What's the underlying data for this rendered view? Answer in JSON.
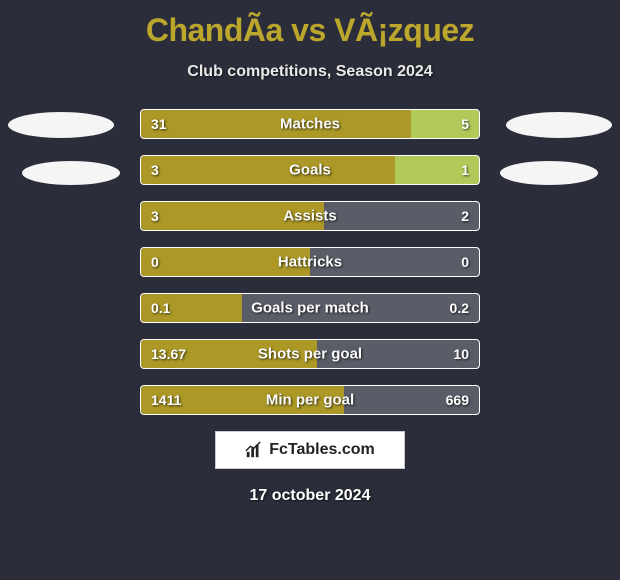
{
  "background_color": "#2b2e3a",
  "title": {
    "text": "ChandÃ­a vs VÃ¡zquez",
    "color": "#bca72c",
    "fontsize": 32
  },
  "subtitle": "Club competitions, Season 2024",
  "ellipses": {
    "color": "#f5f5f5"
  },
  "chart": {
    "type": "comparison-bars",
    "bar_left_color": "#ab9826",
    "bar_right_color": "#b2c95a",
    "track_color": "#5a5d68",
    "border_color": "#ffffff",
    "text_color": "#ffffff",
    "label_fontsize": 15,
    "value_fontsize": 14,
    "rows": [
      {
        "label": "Matches",
        "left": "31",
        "right": "5",
        "left_pct": 80,
        "right_pct": 20
      },
      {
        "label": "Goals",
        "left": "3",
        "right": "1",
        "left_pct": 75,
        "right_pct": 25
      },
      {
        "label": "Assists",
        "left": "3",
        "right": "2",
        "left_pct": 54,
        "right_pct": 0
      },
      {
        "label": "Hattricks",
        "left": "0",
        "right": "0",
        "left_pct": 50,
        "right_pct": 0
      },
      {
        "label": "Goals per match",
        "left": "0.1",
        "right": "0.2",
        "left_pct": 30,
        "right_pct": 0
      },
      {
        "label": "Shots per goal",
        "left": "13.67",
        "right": "10",
        "left_pct": 52,
        "right_pct": 0
      },
      {
        "label": "Min per goal",
        "left": "1411",
        "right": "669",
        "left_pct": 60,
        "right_pct": 0
      }
    ]
  },
  "brand": {
    "text": "FcTables.com",
    "background": "#ffffff"
  },
  "date": "17 october 2024"
}
